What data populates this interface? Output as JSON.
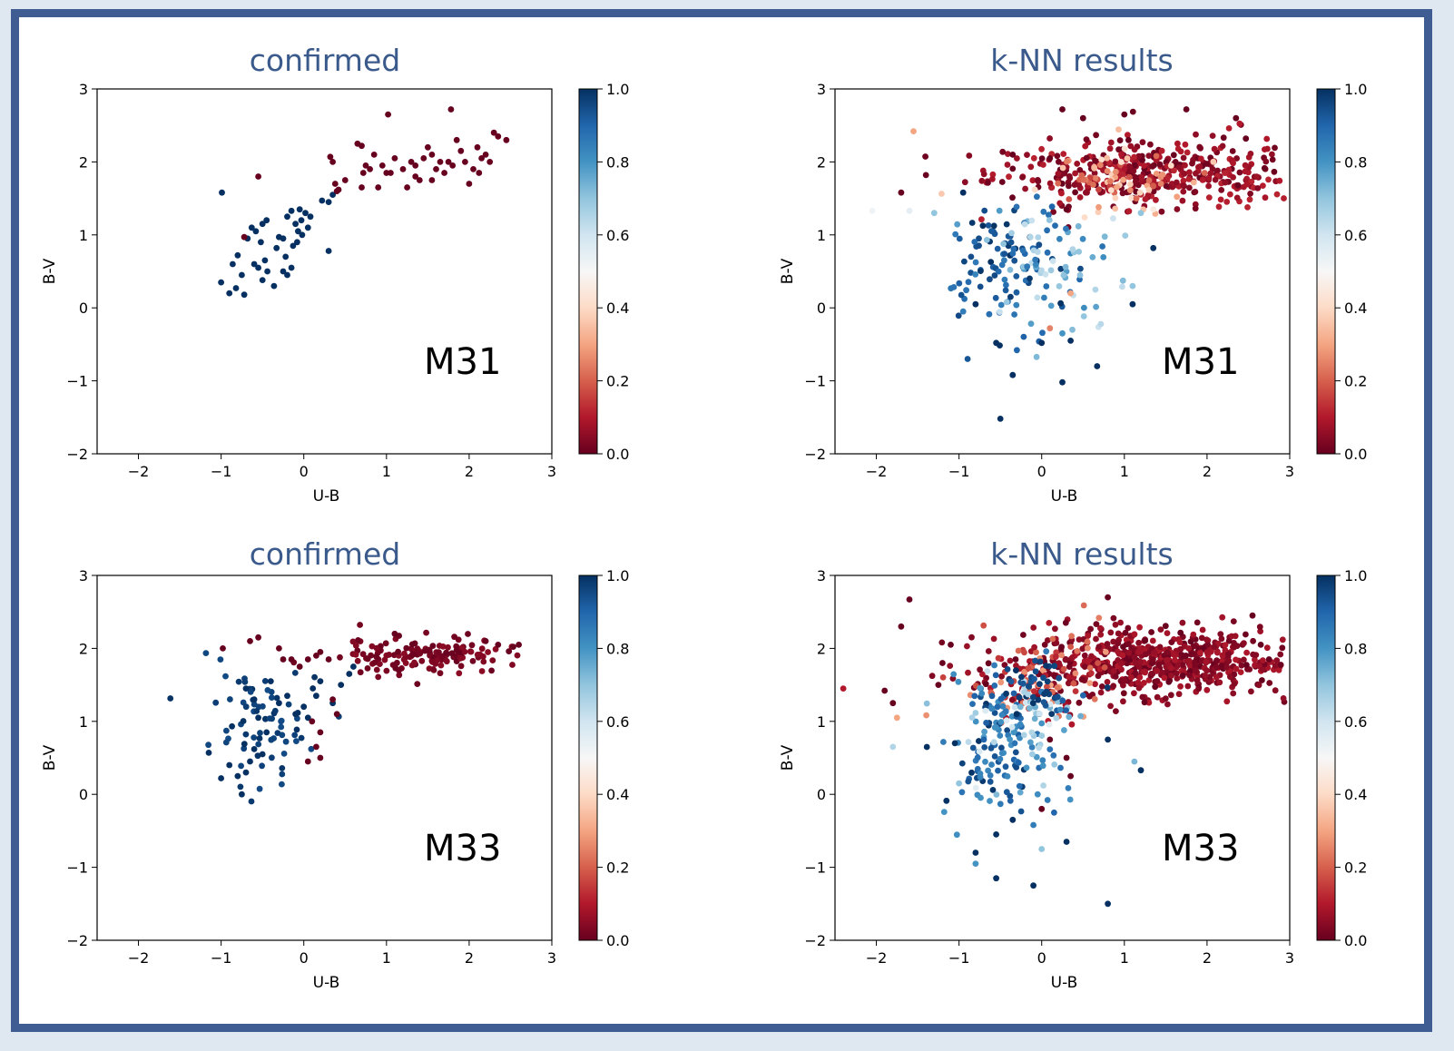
{
  "colors": {
    "frame": "#3f5d92",
    "title": "#3b5a8c",
    "colormap": "RdBu",
    "low": "#67001f",
    "high": "#053061"
  },
  "chart_data": [
    {
      "type": "scatter",
      "title": "confirmed",
      "annotation": "M31",
      "xlabel": "U-B",
      "ylabel": "B-V",
      "xlim": [
        -2.5,
        3
      ],
      "ylim": [
        -2,
        3
      ],
      "xticks": [
        -2,
        -1,
        0,
        1,
        2,
        3
      ],
      "yticks": [
        -2,
        -1,
        0,
        1,
        2,
        3
      ],
      "colorbar": {
        "min": 0.0,
        "max": 1.0,
        "ticks": [
          "0.0",
          "0.2",
          "0.4",
          "0.6",
          "0.8",
          "1.0"
        ]
      },
      "points": [
        [
          -0.99,
          1.58,
          1
        ],
        [
          -1.0,
          0.35,
          1
        ],
        [
          -0.9,
          0.2,
          1
        ],
        [
          -0.82,
          0.27,
          1
        ],
        [
          -0.72,
          0.18,
          1
        ],
        [
          -0.8,
          0.72,
          1
        ],
        [
          -0.86,
          0.6,
          1
        ],
        [
          -0.75,
          0.45,
          1
        ],
        [
          -0.68,
          0.95,
          1
        ],
        [
          -0.63,
          1.1,
          1
        ],
        [
          -0.58,
          1.05,
          1
        ],
        [
          -0.5,
          1.15,
          1
        ],
        [
          -0.45,
          1.2,
          1
        ],
        [
          -0.52,
          0.9,
          1
        ],
        [
          -0.47,
          0.65,
          1
        ],
        [
          -0.55,
          0.55,
          1
        ],
        [
          -0.44,
          0.5,
          1
        ],
        [
          -0.5,
          0.38,
          1
        ],
        [
          -0.6,
          0.6,
          1
        ],
        [
          -0.36,
          0.3,
          1
        ],
        [
          -0.3,
          0.97,
          1
        ],
        [
          -0.25,
          0.95,
          1
        ],
        [
          -0.33,
          0.82,
          1
        ],
        [
          -0.22,
          0.7,
          1
        ],
        [
          -0.25,
          0.5,
          1
        ],
        [
          -0.2,
          0.45,
          1
        ],
        [
          -0.15,
          0.55,
          1
        ],
        [
          -0.13,
          0.85,
          1
        ],
        [
          -0.1,
          1.15,
          1
        ],
        [
          -0.2,
          1.25,
          1
        ],
        [
          -0.15,
          1.33,
          1
        ],
        [
          -0.05,
          1.35,
          1
        ],
        [
          -0.03,
          1.2,
          1
        ],
        [
          0.02,
          1.3,
          1
        ],
        [
          0.05,
          1.1,
          1
        ],
        [
          0.08,
          1.25,
          1
        ],
        [
          -0.07,
          1.05,
          1
        ],
        [
          -0.02,
          1.0,
          1
        ],
        [
          -0.08,
          0.9,
          1
        ],
        [
          0.22,
          1.47,
          1
        ],
        [
          0.3,
          1.45,
          1
        ],
        [
          0.3,
          0.78,
          1
        ],
        [
          0.35,
          1.55,
          1
        ],
        [
          -0.55,
          1.8,
          0
        ],
        [
          -0.72,
          0.97,
          0
        ],
        [
          0.32,
          2.07,
          0
        ],
        [
          0.35,
          2.0,
          0
        ],
        [
          0.38,
          1.7,
          0
        ],
        [
          0.4,
          1.6,
          0
        ],
        [
          0.42,
          1.62,
          0
        ],
        [
          0.5,
          1.75,
          0
        ],
        [
          0.65,
          2.25,
          0
        ],
        [
          0.7,
          2.22,
          0
        ],
        [
          0.75,
          1.95,
          0
        ],
        [
          0.8,
          1.9,
          0
        ],
        [
          0.85,
          2.1,
          0
        ],
        [
          0.7,
          1.65,
          0
        ],
        [
          0.72,
          1.85,
          0
        ],
        [
          0.9,
          1.65,
          0
        ],
        [
          0.95,
          1.95,
          0
        ],
        [
          1.0,
          1.85,
          0
        ],
        [
          1.02,
          2.65,
          0
        ],
        [
          1.1,
          2.05,
          0
        ],
        [
          1.05,
          1.85,
          0
        ],
        [
          1.2,
          1.9,
          0
        ],
        [
          1.25,
          1.65,
          0
        ],
        [
          1.3,
          2.0,
          0
        ],
        [
          1.35,
          1.8,
          0
        ],
        [
          1.4,
          1.75,
          0
        ],
        [
          1.45,
          2.05,
          0
        ],
        [
          1.5,
          2.2,
          0
        ],
        [
          1.55,
          2.1,
          0
        ],
        [
          1.6,
          1.9,
          0
        ],
        [
          1.65,
          2.0,
          0
        ],
        [
          1.7,
          1.85,
          0
        ],
        [
          1.75,
          2.0,
          0
        ],
        [
          1.78,
          2.72,
          0
        ],
        [
          1.8,
          1.95,
          0
        ],
        [
          1.85,
          2.3,
          0
        ],
        [
          1.9,
          2.15,
          0
        ],
        [
          1.95,
          2.0,
          0
        ],
        [
          2.0,
          1.7,
          0
        ],
        [
          2.05,
          1.9,
          0
        ],
        [
          2.1,
          2.2,
          0
        ],
        [
          2.15,
          2.05,
          0
        ],
        [
          2.2,
          2.1,
          0
        ],
        [
          2.25,
          2.0,
          0
        ],
        [
          2.3,
          2.4,
          0
        ],
        [
          2.35,
          2.35,
          0
        ],
        [
          2.45,
          2.3,
          0
        ],
        [
          1.35,
          1.95,
          0
        ],
        [
          1.55,
          1.75,
          0
        ],
        [
          2.12,
          1.85,
          0
        ]
      ]
    },
    {
      "type": "scatter",
      "title": "k-NN results",
      "annotation": "M31",
      "xlabel": "U-B",
      "ylabel": "B-V",
      "xlim": [
        -2.5,
        3
      ],
      "ylim": [
        -2,
        3
      ],
      "xticks": [
        -2,
        -1,
        0,
        1,
        2,
        3
      ],
      "yticks": [
        -2,
        -1,
        0,
        1,
        2,
        3
      ],
      "colorbar": {
        "min": 0.0,
        "max": 1.0,
        "ticks": [
          "0.0",
          "0.2",
          "0.4",
          "0.6",
          "0.8",
          "1.0"
        ]
      },
      "clouds": [
        {
          "cx": 1.3,
          "cy": 1.85,
          "sx": 0.95,
          "sy": 0.22,
          "n": 420,
          "v": [
            0.0,
            0.12
          ]
        },
        {
          "cx": 0.8,
          "cy": 1.75,
          "sx": 0.5,
          "sy": 0.22,
          "n": 70,
          "v": [
            0.15,
            0.42
          ]
        },
        {
          "cx": -0.5,
          "cy": 0.65,
          "sx": 0.35,
          "sy": 0.4,
          "n": 90,
          "v": [
            0.85,
            1.0
          ]
        },
        {
          "cx": 0.1,
          "cy": 0.6,
          "sx": 0.5,
          "sy": 0.45,
          "n": 80,
          "v": [
            0.6,
            0.9
          ]
        }
      ],
      "points": [
        [
          -2.05,
          1.33,
          0.52
        ],
        [
          -1.55,
          2.42,
          0.3
        ],
        [
          -1.6,
          1.33,
          0.55
        ],
        [
          -1.3,
          1.3,
          0.7
        ],
        [
          -1.7,
          1.58,
          0.0
        ],
        [
          -1.4,
          1.82,
          0.0
        ],
        [
          -0.95,
          1.58,
          1
        ],
        [
          -0.35,
          2.1,
          0.0
        ],
        [
          0.25,
          2.72,
          0.0
        ],
        [
          0.3,
          1.35,
          0.0
        ],
        [
          1.0,
          2.65,
          0.0
        ],
        [
          0.1,
          2.05,
          0.0
        ],
        [
          0.5,
          2.6,
          0.0
        ],
        [
          1.05,
          2.3,
          0.0
        ],
        [
          1.2,
          1.3,
          0.7
        ],
        [
          1.35,
          1.35,
          0.45
        ],
        [
          1.35,
          0.82,
          1
        ],
        [
          1.1,
          0.3,
          0.7
        ],
        [
          1.1,
          0.05,
          1
        ],
        [
          0.65,
          0.25,
          0.65
        ],
        [
          0.35,
          0.2,
          0.3
        ],
        [
          0.1,
          -0.28,
          0.25
        ],
        [
          0.25,
          -0.35,
          0.8
        ],
        [
          -0.55,
          -0.48,
          1
        ],
        [
          -0.3,
          -0.58,
          0.9
        ],
        [
          0.0,
          -0.48,
          1
        ],
        [
          0.35,
          -0.45,
          1
        ],
        [
          0.67,
          -0.8,
          1
        ],
        [
          -0.35,
          -0.92,
          1
        ],
        [
          0.25,
          -1.02,
          1
        ],
        [
          -0.5,
          -1.52,
          1
        ],
        [
          -0.95,
          -0.05,
          0.85
        ],
        [
          -0.8,
          0.05,
          1
        ],
        [
          2.35,
          2.6,
          0.0
        ],
        [
          2.47,
          2.32,
          0.0
        ],
        [
          1.75,
          2.72,
          0.0
        ]
      ]
    },
    {
      "type": "scatter",
      "title": "confirmed",
      "annotation": "M33",
      "xlabel": "U-B",
      "ylabel": "B-V",
      "xlim": [
        -2.5,
        3
      ],
      "ylim": [
        -2,
        3
      ],
      "xticks": [
        -2,
        -1,
        0,
        1,
        2,
        3
      ],
      "yticks": [
        -2,
        -1,
        0,
        1,
        2,
        3
      ],
      "colorbar": {
        "min": 0.0,
        "max": 1.0,
        "ticks": [
          "0.0",
          "0.2",
          "0.4",
          "0.6",
          "0.8",
          "1.0"
        ]
      },
      "clouds": [
        {
          "cx": 1.45,
          "cy": 1.9,
          "sx": 0.5,
          "sy": 0.12,
          "n": 150,
          "v": [
            0.0,
            0.05
          ]
        },
        {
          "cx": -0.45,
          "cy": 0.95,
          "sx": 0.35,
          "sy": 0.4,
          "n": 75,
          "v": [
            0.95,
            1.0
          ]
        }
      ],
      "points": [
        [
          -1.15,
          0.57,
          1
        ],
        [
          -1.0,
          0.22,
          1
        ],
        [
          -0.9,
          0.4,
          1
        ],
        [
          -0.8,
          0.25,
          1
        ],
        [
          -0.75,
          0.0,
          1
        ],
        [
          -0.7,
          0.3,
          1
        ],
        [
          -0.65,
          0.45,
          1
        ],
        [
          -0.6,
          0.62,
          1
        ],
        [
          -0.5,
          0.55,
          1
        ],
        [
          -0.45,
          0.85,
          1
        ],
        [
          -0.55,
          1.05,
          1
        ],
        [
          -0.6,
          1.3,
          1
        ],
        [
          -0.7,
          1.45,
          1
        ],
        [
          -0.4,
          1.55,
          1
        ],
        [
          -0.3,
          1.25,
          1
        ],
        [
          -0.2,
          1.35,
          1
        ],
        [
          -0.1,
          1.1,
          1
        ],
        [
          0.0,
          1.2,
          1
        ],
        [
          0.05,
          1.05,
          1
        ],
        [
          0.15,
          1.35,
          1
        ],
        [
          0.2,
          1.55,
          1
        ],
        [
          0.35,
          1.25,
          1
        ],
        [
          0.45,
          1.5,
          1
        ],
        [
          0.55,
          1.65,
          1
        ],
        [
          0.6,
          1.75,
          1
        ],
        [
          -0.98,
          2.0,
          0
        ],
        [
          -0.65,
          2.1,
          0
        ],
        [
          -0.55,
          2.15,
          0
        ],
        [
          -0.3,
          2.0,
          0
        ],
        [
          -0.25,
          1.85,
          0
        ],
        [
          -0.15,
          1.85,
          0
        ],
        [
          -0.05,
          1.75,
          0
        ],
        [
          0.05,
          1.85,
          0
        ],
        [
          0.15,
          1.9,
          0
        ],
        [
          0.2,
          1.95,
          0
        ],
        [
          0.3,
          1.85,
          0
        ],
        [
          0.35,
          1.3,
          0
        ],
        [
          0.4,
          1.1,
          0
        ],
        [
          0.2,
          0.85,
          0
        ],
        [
          0.15,
          0.65,
          0
        ],
        [
          0.2,
          0.5,
          0
        ],
        [
          0.05,
          0.45,
          0
        ],
        [
          0.1,
          1.0,
          0
        ],
        [
          2.6,
          2.05,
          0
        ],
        [
          2.35,
          2.05,
          0
        ],
        [
          2.2,
          2.1,
          0
        ],
        [
          1.1,
          2.2,
          0
        ]
      ]
    },
    {
      "type": "scatter",
      "title": "k-NN results",
      "annotation": "M33",
      "xlabel": "U-B",
      "ylabel": "B-V",
      "xlim": [
        -2.5,
        3
      ],
      "ylim": [
        -2,
        3
      ],
      "xticks": [
        -2,
        -1,
        0,
        1,
        2,
        3
      ],
      "yticks": [
        -2,
        -1,
        0,
        1,
        2,
        3
      ],
      "colorbar": {
        "min": 0.0,
        "max": 1.0,
        "ticks": [
          "0.0",
          "0.2",
          "0.4",
          "0.6",
          "0.8",
          "1.0"
        ]
      },
      "clouds": [
        {
          "cx": 1.35,
          "cy": 1.8,
          "sx": 0.85,
          "sy": 0.22,
          "n": 620,
          "v": [
            0.0,
            0.1
          ]
        },
        {
          "cx": 0.0,
          "cy": 1.55,
          "sx": 0.5,
          "sy": 0.35,
          "n": 110,
          "v": [
            0.0,
            0.3
          ]
        },
        {
          "cx": -0.55,
          "cy": 0.65,
          "sx": 0.3,
          "sy": 0.45,
          "n": 110,
          "v": [
            0.8,
            1.0
          ]
        },
        {
          "cx": -0.2,
          "cy": 0.9,
          "sx": 0.4,
          "sy": 0.45,
          "n": 80,
          "v": [
            0.55,
            0.9
          ]
        },
        {
          "cx": -0.1,
          "cy": 1.45,
          "sx": 0.25,
          "sy": 0.18,
          "n": 40,
          "v": [
            0.9,
            1.0
          ]
        }
      ],
      "points": [
        [
          -2.4,
          1.45,
          0.1
        ],
        [
          -1.6,
          2.67,
          0.0
        ],
        [
          -1.7,
          2.3,
          0.0
        ],
        [
          -1.9,
          1.42,
          0.0
        ],
        [
          -1.8,
          1.25,
          0.0
        ],
        [
          -1.75,
          1.05,
          0.3
        ],
        [
          -1.8,
          0.65,
          0.65
        ],
        [
          -1.25,
          1.5,
          0.0
        ],
        [
          -1.1,
          2.05,
          0.0
        ],
        [
          -1.2,
          1.8,
          0.0
        ],
        [
          -0.8,
          -0.8,
          1
        ],
        [
          -0.8,
          -0.95,
          0.8
        ],
        [
          -0.55,
          -1.15,
          1
        ],
        [
          -0.1,
          -1.25,
          1
        ],
        [
          0.0,
          -0.75,
          0.7
        ],
        [
          0.3,
          -0.65,
          1
        ],
        [
          0.8,
          -1.5,
          1
        ],
        [
          0.8,
          0.75,
          1
        ],
        [
          1.2,
          0.33,
          1
        ],
        [
          0.1,
          0.75,
          0.0
        ],
        [
          0.3,
          0.5,
          0.0
        ],
        [
          0.35,
          0.25,
          0.0
        ],
        [
          0.0,
          -0.2,
          0.0
        ],
        [
          2.55,
          2.45,
          0.0
        ],
        [
          2.65,
          2.05,
          0.0
        ],
        [
          2.75,
          1.85,
          0.0
        ],
        [
          0.8,
          2.7,
          0.0
        ],
        [
          -0.55,
          -0.55,
          1
        ],
        [
          -0.35,
          -0.35,
          1
        ],
        [
          -0.1,
          -0.42,
          0.85
        ],
        [
          -1.05,
          0.7,
          1
        ],
        [
          -1.0,
          0.15,
          0.7
        ],
        [
          -0.7,
          0.75,
          0.9
        ],
        [
          0.15,
          -0.25,
          0.9
        ]
      ]
    }
  ]
}
